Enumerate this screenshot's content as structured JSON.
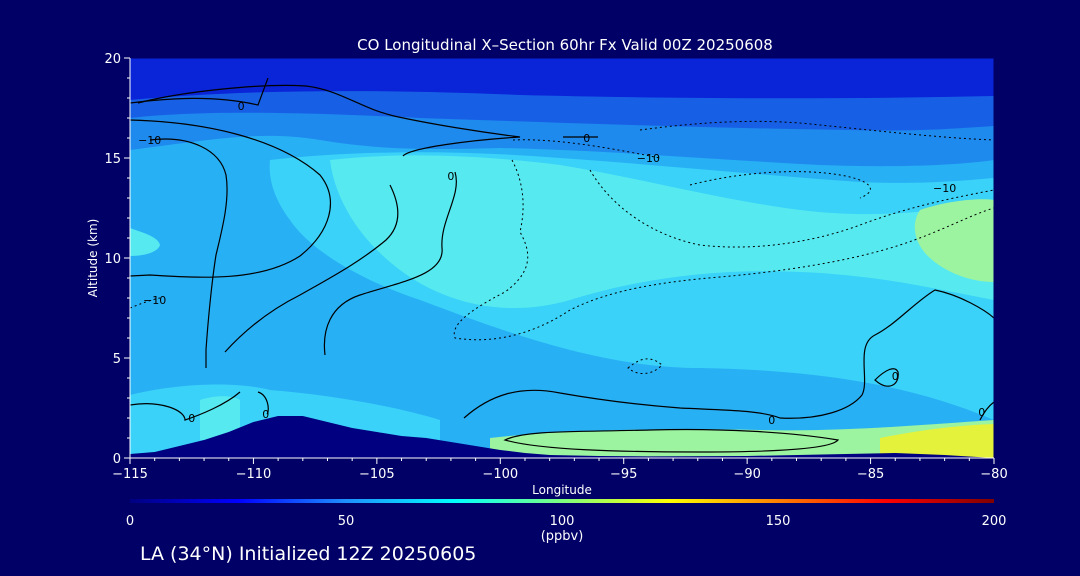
{
  "chart_data": {
    "type": "contour",
    "title": "CO Longitudinal X–Section 60hr  Fx Valid 00Z 20250608",
    "xlabel": "Longitude",
    "ylabel": "Altitude (km)",
    "xlim": [
      -115,
      -80
    ],
    "ylim": [
      0,
      20
    ],
    "x_ticks": [
      -115,
      -110,
      -105,
      -100,
      -95,
      -90,
      -85,
      -80
    ],
    "x_tick_labels": [
      "−115",
      "−110",
      "−105",
      "−100",
      "−95",
      "−90",
      "−85",
      "−80"
    ],
    "y_ticks": [
      0,
      5,
      10,
      15,
      20
    ],
    "y_tick_labels": [
      "0",
      "5",
      "10",
      "15",
      "20"
    ],
    "colorbar": {
      "min": 0,
      "max": 200,
      "ticks": [
        0,
        50,
        100,
        150,
        200
      ],
      "tick_labels": [
        "0",
        "50",
        "100",
        "150",
        "200"
      ],
      "units": "(ppbv)",
      "stops": [
        "#000080",
        "#0000ff",
        "#1e90ff",
        "#00ffff",
        "#7fff7f",
        "#ffff00",
        "#ff8000",
        "#ff0000",
        "#800000"
      ]
    },
    "filled_levels": [
      {
        "value": 20,
        "color": "#0a24d8"
      },
      {
        "value": 30,
        "color": "#1760e6"
      },
      {
        "value": 40,
        "color": "#1f8aee"
      },
      {
        "value": 50,
        "color": "#28b0f5"
      },
      {
        "value": 60,
        "color": "#3ad2f8"
      },
      {
        "value": 70,
        "color": "#56eaf0"
      },
      {
        "value": 85,
        "color": "#9cf3a0"
      },
      {
        "value": 100,
        "color": "#e4f23c"
      }
    ],
    "contour_labels": [
      {
        "text": "0",
        "lon": -110.5,
        "alt": 17.6
      },
      {
        "text": "−10",
        "lon": -114.2,
        "alt": 15.9
      },
      {
        "text": "0",
        "lon": -96.5,
        "alt": 16.0
      },
      {
        "text": "−10",
        "lon": -94.0,
        "alt": 15.0
      },
      {
        "text": "0",
        "lon": -102.0,
        "alt": 14.1
      },
      {
        "text": "−10",
        "lon": -82.0,
        "alt": 13.5
      },
      {
        "text": "−10",
        "lon": -114.0,
        "alt": 7.9
      },
      {
        "text": "0",
        "lon": -112.5,
        "alt": 2.0
      },
      {
        "text": "0",
        "lon": -109.5,
        "alt": 2.2
      },
      {
        "text": "0",
        "lon": -89.0,
        "alt": 1.9
      },
      {
        "text": "0",
        "lon": -84.0,
        "alt": 4.1
      },
      {
        "text": "0",
        "lon": -80.5,
        "alt": 2.3
      }
    ],
    "terrain": [
      {
        "lon": -115,
        "alt": 0.2
      },
      {
        "lon": -114,
        "alt": 0.3
      },
      {
        "lon": -113,
        "alt": 0.6
      },
      {
        "lon": -112,
        "alt": 0.9
      },
      {
        "lon": -111,
        "alt": 1.3
      },
      {
        "lon": -110,
        "alt": 1.8
      },
      {
        "lon": -109,
        "alt": 2.1
      },
      {
        "lon": -108,
        "alt": 2.1
      },
      {
        "lon": -107,
        "alt": 1.8
      },
      {
        "lon": -106,
        "alt": 1.5
      },
      {
        "lon": -105,
        "alt": 1.3
      },
      {
        "lon": -104,
        "alt": 1.1
      },
      {
        "lon": -103,
        "alt": 1.0
      },
      {
        "lon": -102,
        "alt": 0.8
      },
      {
        "lon": -101,
        "alt": 0.6
      },
      {
        "lon": -100,
        "alt": 0.4
      },
      {
        "lon": -99,
        "alt": 0.25
      },
      {
        "lon": -98,
        "alt": 0.15
      },
      {
        "lon": -96,
        "alt": 0.1
      },
      {
        "lon": -94,
        "alt": 0.08
      },
      {
        "lon": -90,
        "alt": 0.1
      },
      {
        "lon": -86,
        "alt": 0.2
      },
      {
        "lon": -84,
        "alt": 0.25
      },
      {
        "lon": -82,
        "alt": 0.15
      },
      {
        "lon": -80,
        "alt": 0.0
      }
    ]
  },
  "footer": {
    "text": "LA (34°N) Initialized 12Z 20250605"
  },
  "colors": {
    "background": "#000066",
    "text": "#ffffff",
    "terrain": "#000080",
    "contour": "#000000"
  }
}
